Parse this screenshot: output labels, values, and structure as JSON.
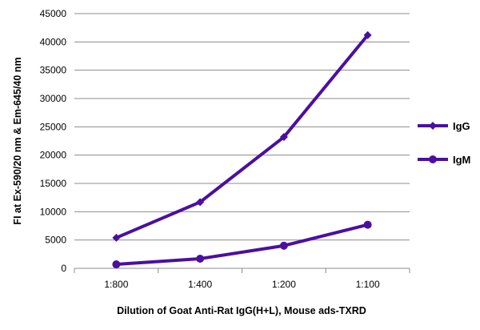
{
  "chart_data": {
    "type": "line",
    "title": "",
    "xlabel": "Dilution of Goat Anti-Rat IgG(H+L), Mouse ads-TXRD",
    "ylabel": "FI at Ex-590/20 nm & Em-645/40 nm",
    "categories": [
      "1:800",
      "1:400",
      "1:200",
      "1:100"
    ],
    "ylim": [
      0,
      45000
    ],
    "yticks": [
      "0",
      "5000",
      "10000",
      "15000",
      "20000",
      "25000",
      "30000",
      "35000",
      "40000",
      "45000"
    ],
    "grid": true,
    "legend": "right",
    "series": [
      {
        "name": "IgG",
        "values": [
          5400,
          11700,
          23200,
          41200
        ],
        "marker": "diamond",
        "color": "#4b0fa0"
      },
      {
        "name": "IgM",
        "values": [
          700,
          1700,
          4000,
          7700
        ],
        "marker": "circle",
        "color": "#4b0fa0"
      }
    ]
  }
}
